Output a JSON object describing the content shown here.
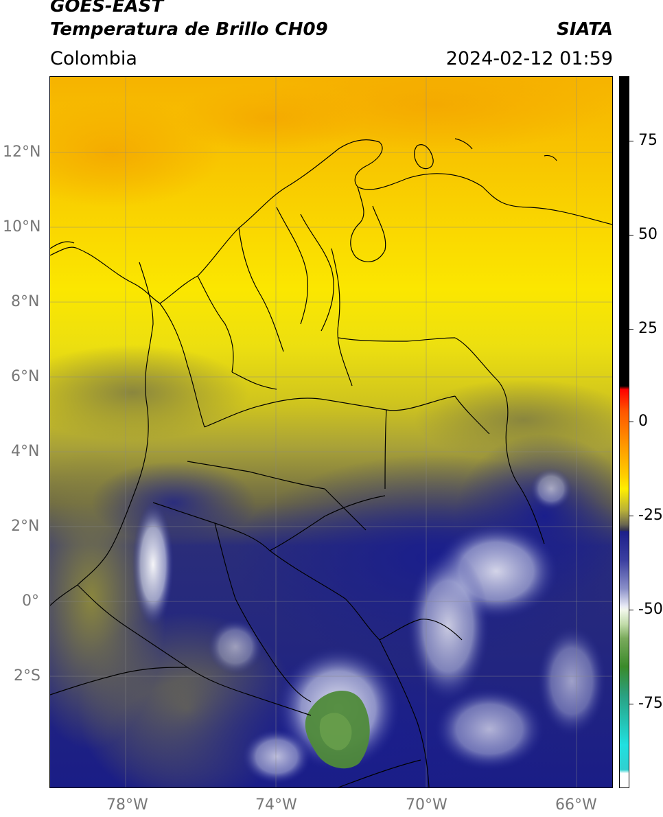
{
  "header": {
    "satellite": "GOES-EAST",
    "product": "Temperatura de Brillo CH09",
    "source": "SIATA",
    "region": "Colombia",
    "datetime": "2024-02-12 01:59"
  },
  "map": {
    "lat_labels": [
      "12°N",
      "10°N",
      "8°N",
      "6°N",
      "4°N",
      "2°N",
      "0°",
      "2°S"
    ],
    "lon_labels": [
      "78°W",
      "74°W",
      "70°W",
      "66°W"
    ],
    "colors": {
      "warm_yellow": "#f7e400",
      "orange": "#f5b400",
      "olive": "#8a8a3a",
      "navy": "#1c1f8a",
      "white_cloud": "#e8ecf5",
      "green_cloud": "#4f8a3a"
    }
  },
  "colorbar": {
    "labels": [
      "75",
      "50",
      "25",
      "0",
      "-25",
      "-50",
      "-75"
    ],
    "stops": [
      {
        "color": "#000000",
        "label": "75"
      },
      {
        "color": "#ff0000",
        "label": "0"
      },
      {
        "color": "#ffee00",
        "label": "-25"
      },
      {
        "color": "#1c1f8a",
        "label": "-25"
      },
      {
        "color": "#ffffff",
        "label": "-50"
      },
      {
        "color": "#3a8a2a",
        "label": "-75"
      },
      {
        "color": "#20e0e0",
        "label": "-75"
      }
    ]
  }
}
